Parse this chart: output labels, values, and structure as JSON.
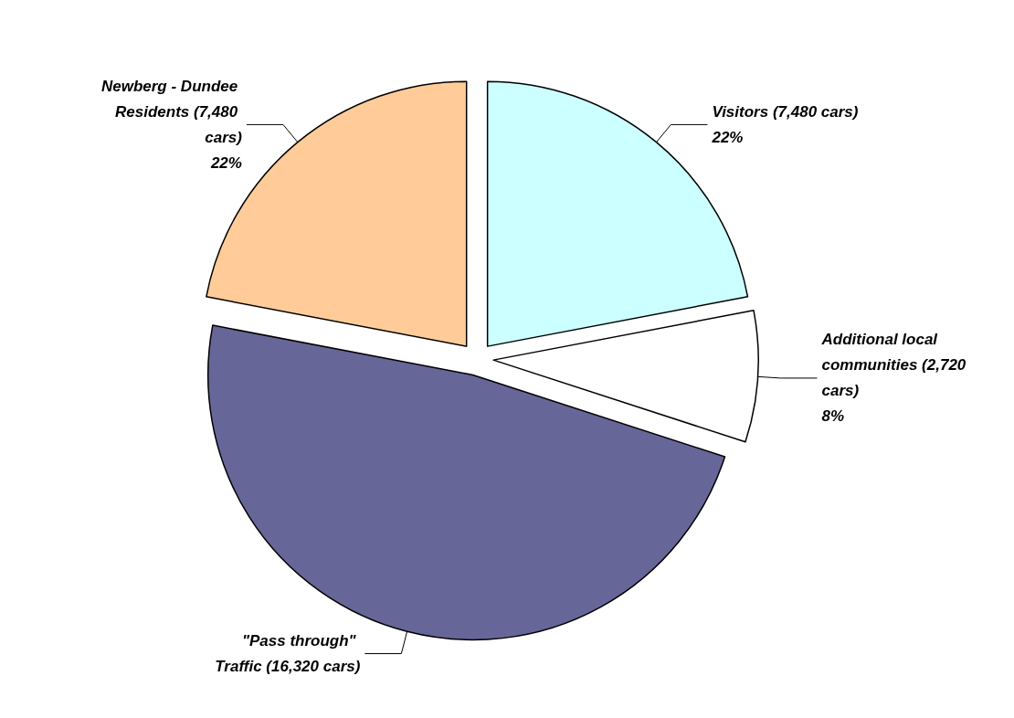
{
  "chart_data": {
    "type": "pie",
    "categories": [
      "Visitors (7,480 cars)",
      "Additional local communities (2,720 cars)",
      "\"Pass through\" Traffic (16,320 cars)",
      "Newberg - Dundee Residents (7,480 cars)"
    ],
    "values": [
      22,
      8,
      48,
      22
    ],
    "colors": [
      "#ccffff",
      "#ffffff",
      "#666699",
      "#ffcc99"
    ],
    "value_labels": [
      "22%",
      "8%",
      null,
      "22%"
    ],
    "legend": false
  }
}
